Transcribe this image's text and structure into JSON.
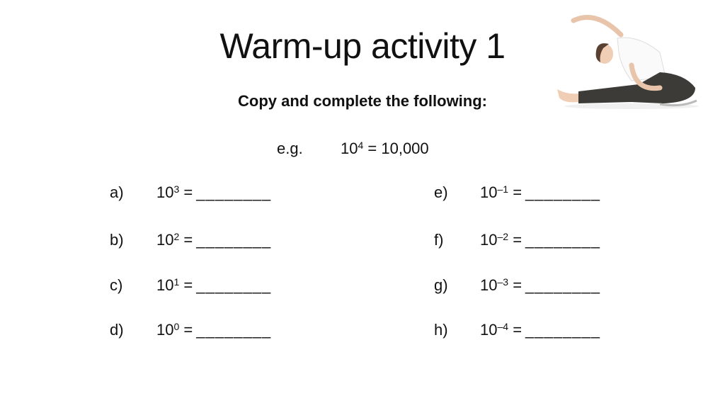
{
  "title": "Warm-up activity 1",
  "subtitle": "Copy and complete the following:",
  "example": {
    "label": "e.g.",
    "base": "10",
    "exp": "4",
    "result": "= 10,000"
  },
  "blank": "________",
  "left": [
    {
      "label": "a)",
      "base": "10",
      "exp": "3",
      "eq": "="
    },
    {
      "label": "b)",
      "base": "10",
      "exp": "2",
      "eq": "="
    },
    {
      "label": "c)",
      "base": "10",
      "exp": "1",
      "eq": "="
    },
    {
      "label": "d)",
      "base": "10",
      "exp": "0",
      "eq": "="
    }
  ],
  "right": [
    {
      "label": "e)",
      "base": "10",
      "exp": "–1",
      "eq": "="
    },
    {
      "label": "f)",
      "base": "10",
      "exp": "–2",
      "eq": "="
    },
    {
      "label": "g)",
      "base": "10",
      "exp": "–3",
      "eq": "="
    },
    {
      "label": "h)",
      "base": "10",
      "exp": "–4",
      "eq": "="
    }
  ],
  "image": "woman-stretching-photo"
}
